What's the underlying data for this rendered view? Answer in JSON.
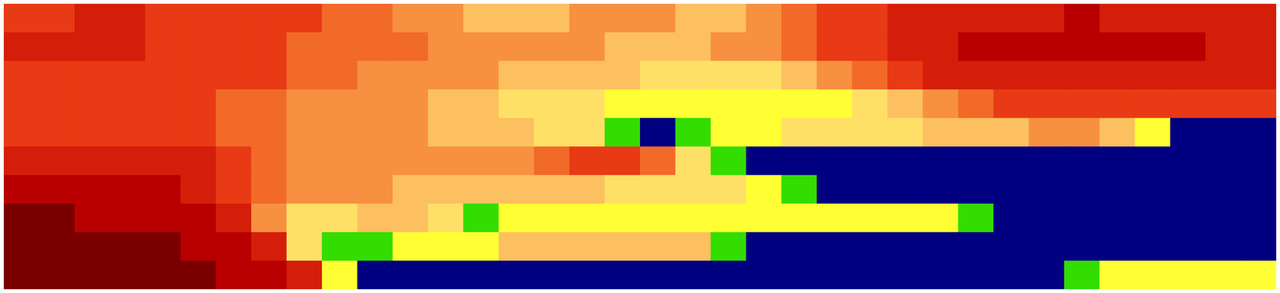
{
  "chart_data": {
    "type": "heatmap",
    "tick_labels": false,
    "colors": [
      "#000080",
      "#33dd00",
      "#ffff33",
      "#ffe066",
      "#fcc060",
      "#f79040",
      "#f26a28",
      "#e83a14",
      "#d41e0a",
      "#b80000",
      "#7a0000"
    ],
    "cells": [
      [
        7,
        7,
        8,
        8,
        7,
        7,
        7,
        7,
        7,
        6,
        6,
        5,
        5,
        4,
        4,
        4,
        5,
        5,
        5,
        4,
        4,
        5,
        6,
        7,
        7,
        8,
        8,
        8,
        8,
        8,
        9,
        8,
        8,
        8,
        8,
        8
      ],
      [
        8,
        8,
        8,
        8,
        7,
        7,
        7,
        7,
        6,
        6,
        6,
        6,
        5,
        5,
        5,
        5,
        5,
        4,
        4,
        4,
        5,
        5,
        6,
        7,
        7,
        8,
        8,
        9,
        9,
        9,
        9,
        9,
        9,
        9,
        8,
        8
      ],
      [
        7,
        7,
        7,
        7,
        7,
        7,
        7,
        7,
        6,
        6,
        5,
        5,
        5,
        5,
        4,
        4,
        4,
        4,
        3,
        3,
        3,
        3,
        4,
        5,
        6,
        7,
        8,
        8,
        8,
        8,
        8,
        8,
        8,
        8,
        8,
        8
      ],
      [
        7,
        7,
        7,
        7,
        7,
        7,
        6,
        6,
        5,
        5,
        5,
        5,
        4,
        4,
        3,
        3,
        3,
        2,
        2,
        2,
        2,
        2,
        2,
        2,
        3,
        4,
        5,
        6,
        7,
        7,
        7,
        7,
        7,
        7,
        7,
        7
      ],
      [
        7,
        7,
        7,
        7,
        7,
        7,
        6,
        6,
        5,
        5,
        5,
        5,
        4,
        4,
        4,
        3,
        3,
        1,
        0,
        1,
        2,
        2,
        3,
        3,
        3,
        3,
        4,
        4,
        4,
        5,
        5,
        4,
        2,
        0,
        0,
        0
      ],
      [
        8,
        8,
        8,
        8,
        8,
        8,
        7,
        6,
        5,
        5,
        5,
        5,
        5,
        5,
        5,
        6,
        7,
        7,
        6,
        3,
        1,
        0,
        0,
        0,
        0,
        0,
        0,
        0,
        0,
        0,
        0,
        0,
        0,
        0,
        0,
        0
      ],
      [
        9,
        9,
        9,
        9,
        9,
        8,
        7,
        6,
        5,
        5,
        5,
        4,
        4,
        4,
        4,
        4,
        4,
        3,
        3,
        3,
        3,
        2,
        1,
        0,
        0,
        0,
        0,
        0,
        0,
        0,
        0,
        0,
        0,
        0,
        0,
        0
      ],
      [
        10,
        10,
        9,
        9,
        9,
        9,
        8,
        5,
        3,
        3,
        4,
        4,
        3,
        1,
        2,
        2,
        2,
        2,
        2,
        2,
        2,
        2,
        2,
        2,
        2,
        2,
        2,
        1,
        0,
        0,
        0,
        0,
        0,
        0,
        0,
        0
      ],
      [
        10,
        10,
        10,
        10,
        10,
        9,
        9,
        8,
        3,
        1,
        1,
        2,
        2,
        2,
        4,
        4,
        4,
        4,
        4,
        4,
        1,
        0,
        0,
        0,
        0,
        0,
        0,
        0,
        0,
        0,
        0,
        0,
        0,
        0,
        0,
        0
      ],
      [
        10,
        10,
        10,
        10,
        10,
        10,
        9,
        9,
        8,
        2,
        0,
        0,
        0,
        0,
        0,
        0,
        0,
        0,
        0,
        0,
        0,
        0,
        0,
        0,
        0,
        0,
        0,
        0,
        0,
        0,
        1,
        2,
        2,
        2,
        2,
        2
      ]
    ]
  }
}
